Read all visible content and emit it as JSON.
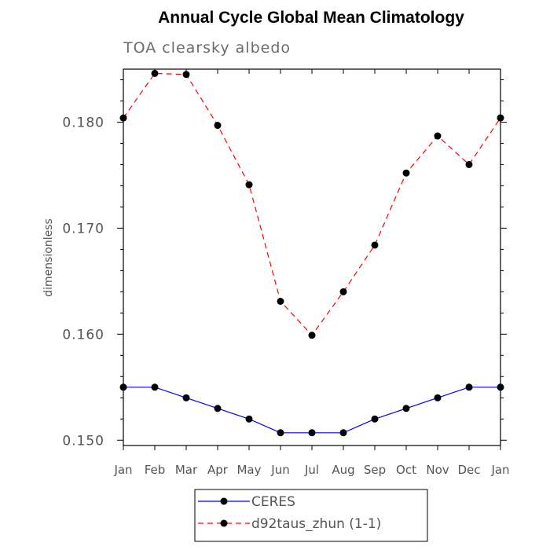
{
  "chart_data": {
    "type": "line",
    "title": "Annual Cycle Global Mean Climatology",
    "subtitle": "TOA clearsky albedo",
    "xlabel": "",
    "ylabel": "dimensionless",
    "categories": [
      "Jan",
      "Feb",
      "Mar",
      "Apr",
      "May",
      "Jun",
      "Jul",
      "Aug",
      "Sep",
      "Oct",
      "Nov",
      "Dec",
      "Jan"
    ],
    "ylim": [
      0.1495,
      0.185
    ],
    "yticks": [
      0.15,
      0.16,
      0.17,
      0.18
    ],
    "ytick_labels": [
      "0.150",
      "0.160",
      "0.170",
      "0.180"
    ],
    "series": [
      {
        "name": "CERES",
        "color": "#0000ff",
        "dash": "solid",
        "values": [
          0.155,
          0.155,
          0.154,
          0.153,
          0.152,
          0.1507,
          0.1507,
          0.1507,
          0.152,
          0.153,
          0.154,
          0.155,
          0.155
        ]
      },
      {
        "name": "d92taus_zhun (1-1)",
        "color": "#ff0000",
        "dash": "dashed",
        "values": [
          0.1804,
          0.1846,
          0.1845,
          0.1797,
          0.1741,
          0.1631,
          0.1599,
          0.164,
          0.1684,
          0.1752,
          0.1787,
          0.176,
          0.1804
        ]
      }
    ],
    "legend_position": "bottom-center"
  }
}
